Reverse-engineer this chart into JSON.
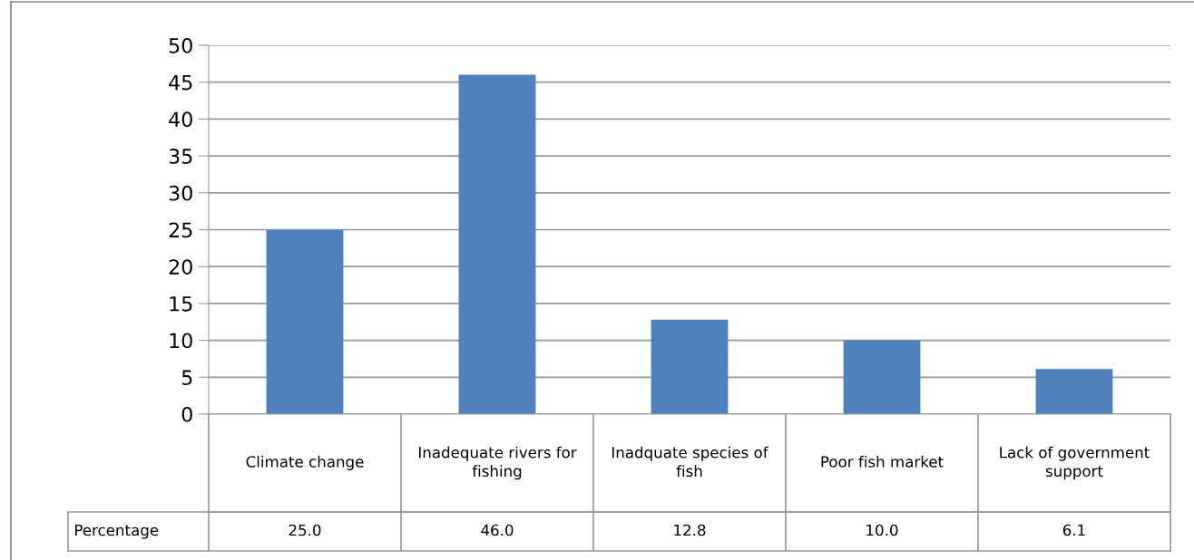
{
  "chart_data": {
    "type": "bar",
    "categories": [
      "Climate change",
      "Inadequate rivers for fishing",
      "Inadquate species of fish",
      "Poor fish market",
      "Lack of government support"
    ],
    "series": [
      {
        "name": "Percentage",
        "color": "#4f81bd",
        "values": [
          25.0,
          46.0,
          12.8,
          10.0,
          6.1
        ],
        "value_labels": [
          "25.0",
          "46.0",
          "12.8",
          "10.0",
          "6.1"
        ]
      }
    ],
    "ylim": [
      0,
      50
    ],
    "yticks": [
      0,
      5,
      10,
      15,
      20,
      25,
      30,
      35,
      40,
      45,
      50
    ],
    "grid": "y",
    "data_labels": true
  }
}
